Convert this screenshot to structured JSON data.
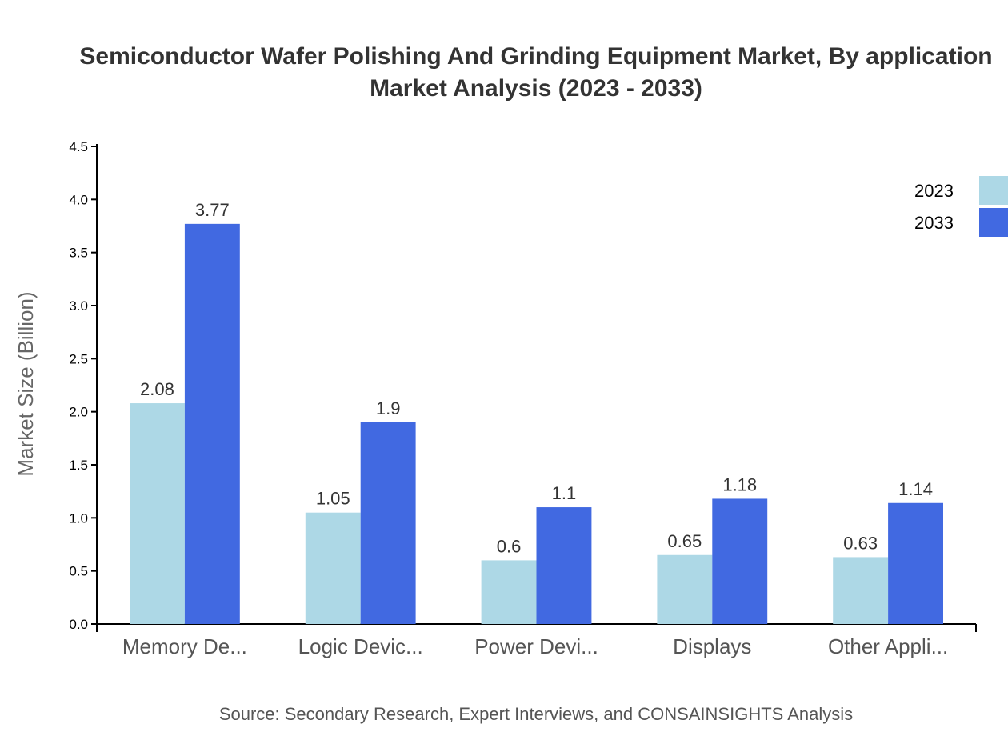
{
  "chart_data": {
    "type": "bar",
    "title": [
      "Semiconductor Wafer Polishing And Grinding Equipment Market, By application",
      "Market Analysis (2023 - 2033)"
    ],
    "xlabel": "",
    "ylabel": "Market Size (Billion)",
    "ylim": [
      0,
      4.5
    ],
    "yticks": [
      "0.0",
      "0.5",
      "1.0",
      "1.5",
      "2.0",
      "2.5",
      "3.0",
      "3.5",
      "4.0",
      "4.5"
    ],
    "categories": [
      "Memory De...",
      "Logic Devic...",
      "Power Devi...",
      "Displays",
      "Other Appli..."
    ],
    "series": [
      {
        "name": "2023",
        "color": "#add8e6",
        "values": [
          2.08,
          1.05,
          0.6,
          0.65,
          0.63
        ]
      },
      {
        "name": "2033",
        "color": "#4169e1",
        "values": [
          3.77,
          1.9,
          1.1,
          1.18,
          1.14
        ]
      }
    ],
    "legend_position": "top-right",
    "grid": false,
    "source": "Source: Secondary Research, Expert Interviews, and CONSAINSIGHTS Analysis"
  }
}
